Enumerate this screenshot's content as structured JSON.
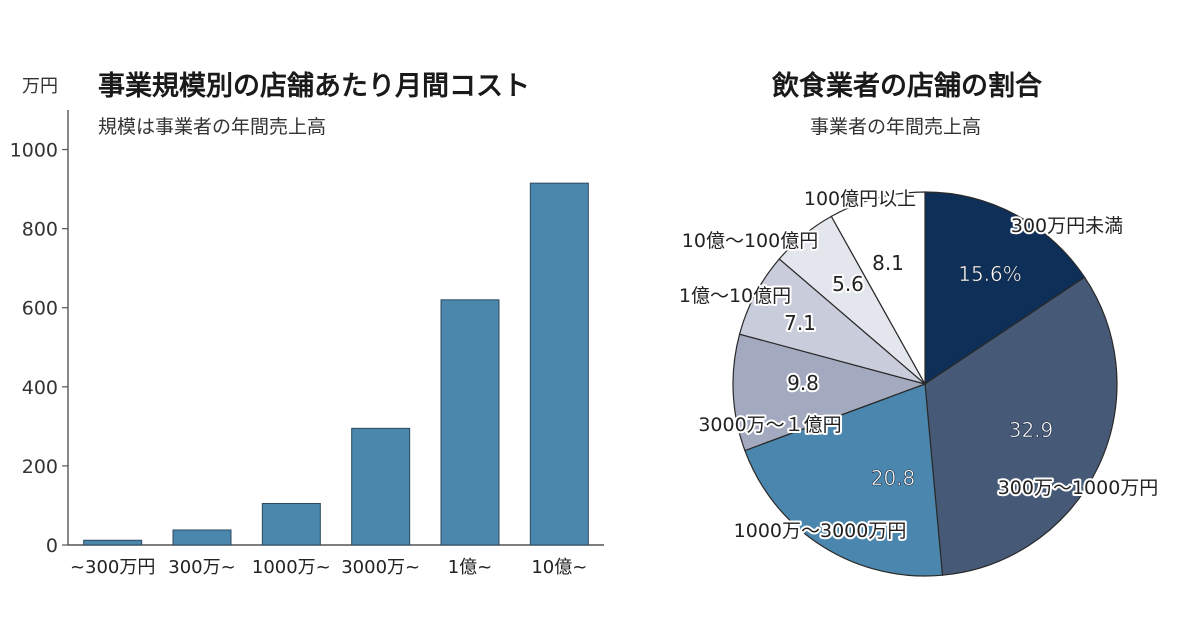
{
  "chart_data": [
    {
      "type": "bar",
      "title": "事業規模別の店舗あたり月間コスト",
      "subtitle": "規模は事業者の年間売上高",
      "ylabel": "万円",
      "categories": [
        "~300万円",
        "300万~",
        "1000万~",
        "3000万~",
        "1億~",
        "10億~"
      ],
      "values": [
        12,
        38,
        105,
        295,
        620,
        915
      ],
      "ylim": [
        0,
        1100
      ],
      "yticks": [
        0,
        200,
        400,
        600,
        800,
        1000
      ],
      "bar_color": "#4b86ad"
    },
    {
      "type": "pie",
      "title": "飲食業者の店舗の割合",
      "subtitle": "事業者の年間売上高",
      "slices": [
        {
          "label": "300万円未満",
          "value": 15.6,
          "value_label": "15.6%",
          "color": "#0e2f57",
          "text_color": "#ffffff"
        },
        {
          "label": "300万～1000万円",
          "value": 32.9,
          "value_label": "32.9",
          "color": "#465a78",
          "text_color": "#ffffff"
        },
        {
          "label": "1000万～3000万円",
          "value": 20.8,
          "value_label": "20.8",
          "color": "#4a86ad",
          "text_color": "#ffffff"
        },
        {
          "label": "3000万～１億円",
          "value": 9.8,
          "value_label": "9.8",
          "color": "#a3a9bf",
          "text_color": "#222222"
        },
        {
          "label": "1億～10億円",
          "value": 7.1,
          "value_label": "7.1",
          "color": "#c8ccdb",
          "text_color": "#222222"
        },
        {
          "label": "10億～100億円",
          "value": 5.6,
          "value_label": "5.6",
          "color": "#e4e6ee",
          "text_color": "#222222"
        },
        {
          "label": "100億円以上",
          "value": 8.1,
          "value_label": "8.1",
          "color": "#ffffff",
          "text_color": "#222222"
        }
      ]
    }
  ]
}
